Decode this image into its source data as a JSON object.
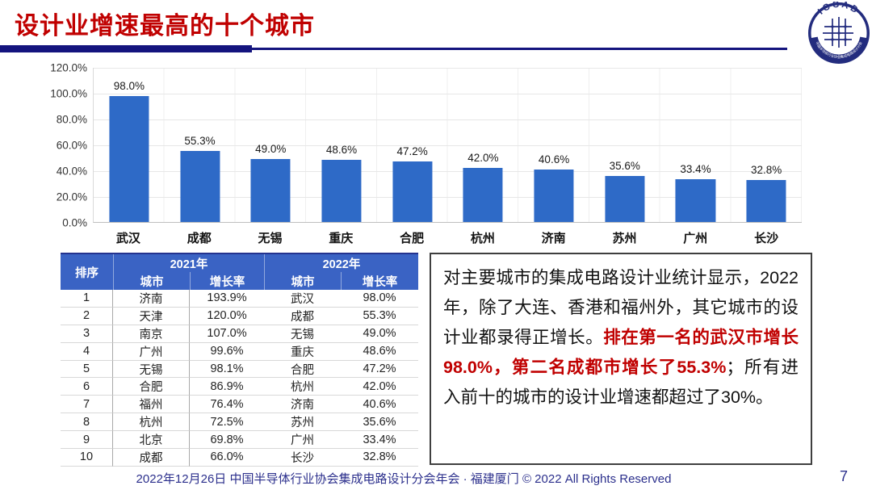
{
  "header": {
    "title": "设计业增速最高的十个城市",
    "logo_text": "ICCAD",
    "logo_subtext": "中国半导体行业协会集成电路设计分会"
  },
  "chart_data": {
    "type": "bar",
    "title": "",
    "xlabel": "",
    "ylabel": "",
    "categories": [
      "武汉",
      "成都",
      "无锡",
      "重庆",
      "合肥",
      "杭州",
      "济南",
      "苏州",
      "广州",
      "长沙"
    ],
    "values": [
      98.0,
      55.3,
      49.0,
      48.6,
      47.2,
      42.0,
      40.6,
      35.6,
      33.4,
      32.8
    ],
    "value_labels": [
      "98.0%",
      "55.3%",
      "49.0%",
      "48.6%",
      "47.2%",
      "42.0%",
      "40.6%",
      "35.6%",
      "33.4%",
      "32.8%"
    ],
    "yticks": [
      "120.0%",
      "100.0%",
      "80.0%",
      "60.0%",
      "40.0%",
      "20.0%",
      "0.0%"
    ],
    "ylim": [
      0,
      120
    ],
    "grid": true,
    "legend": false,
    "bar_color": "#2E6AC7"
  },
  "table": {
    "rank_header": "排序",
    "year_headers": [
      "2021年",
      "2022年"
    ],
    "sub_headers": [
      "城市",
      "增长率",
      "城市",
      "增长率"
    ],
    "header_bg": "#3A63C4",
    "rows": [
      {
        "rank": "1",
        "city_2021": "济南",
        "rate_2021": "193.9%",
        "city_2022": "武汉",
        "rate_2022": "98.0%"
      },
      {
        "rank": "2",
        "city_2021": "天津",
        "rate_2021": "120.0%",
        "city_2022": "成都",
        "rate_2022": "55.3%"
      },
      {
        "rank": "3",
        "city_2021": "南京",
        "rate_2021": "107.0%",
        "city_2022": "无锡",
        "rate_2022": "49.0%"
      },
      {
        "rank": "4",
        "city_2021": "广州",
        "rate_2021": "99.6%",
        "city_2022": "重庆",
        "rate_2022": "48.6%"
      },
      {
        "rank": "5",
        "city_2021": "无锡",
        "rate_2021": "98.1%",
        "city_2022": "合肥",
        "rate_2022": "47.2%"
      },
      {
        "rank": "6",
        "city_2021": "合肥",
        "rate_2021": "86.9%",
        "city_2022": "杭州",
        "rate_2022": "42.0%"
      },
      {
        "rank": "7",
        "city_2021": "福州",
        "rate_2021": "76.4%",
        "city_2022": "济南",
        "rate_2022": "40.6%"
      },
      {
        "rank": "8",
        "city_2021": "杭州",
        "rate_2021": "72.5%",
        "city_2022": "苏州",
        "rate_2022": "35.6%"
      },
      {
        "rank": "9",
        "city_2021": "北京",
        "rate_2021": "69.8%",
        "city_2022": "广州",
        "rate_2022": "33.4%"
      },
      {
        "rank": "10",
        "city_2021": "成都",
        "rate_2021": "66.0%",
        "city_2022": "长沙",
        "rate_2022": "32.8%"
      }
    ]
  },
  "note": {
    "part1": "对主要城市的集成电路设计业统计显示，2022年，除了大连、香港和福州外，其它城市的设计业都录得正增长。",
    "part2": "排在第一名的武汉市增长98.0%，第二名成都市增长了55.3%",
    "part3": "；所有进入前十的城市的设计业增速都超过了30%。",
    "highlight_color": "#C00000"
  },
  "footer": {
    "text": "2022年12月26日 中国半导体行业协会集成电路设计分会年会 · 福建厦门 © 2022 All Rights Reserved",
    "page_number": "7"
  },
  "colors": {
    "title_red": "#C00000",
    "divider_navy": "#14147E",
    "bar_blue": "#2E6AC7",
    "table_header_blue": "#3A63C4",
    "footer_navy": "#2B2F8C"
  }
}
